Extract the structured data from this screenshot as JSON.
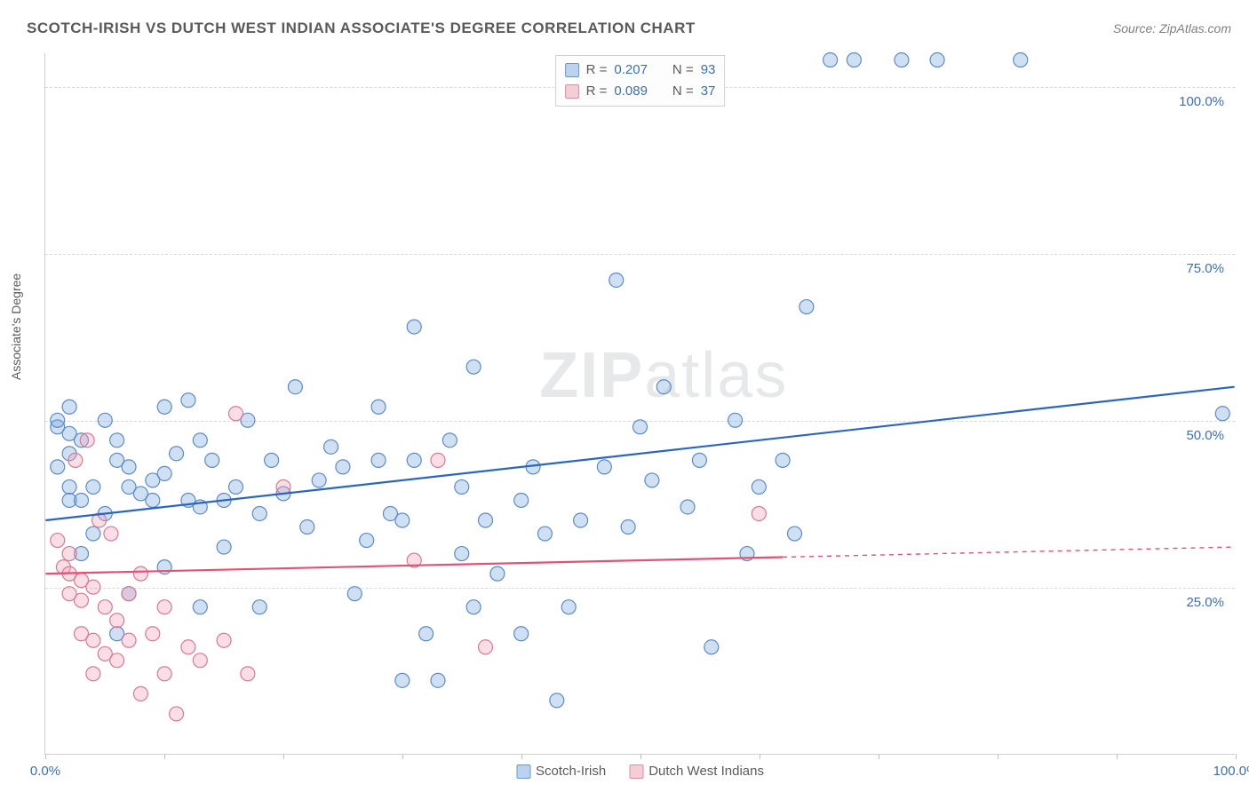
{
  "title": "SCOTCH-IRISH VS DUTCH WEST INDIAN ASSOCIATE'S DEGREE CORRELATION CHART",
  "source_label": "Source: ZipAtlas.com",
  "y_axis_label": "Associate's Degree",
  "watermark": "ZIPatlas",
  "chart": {
    "type": "scatter",
    "background_color": "#ffffff",
    "grid_color": "#d8d8d8",
    "axis_color": "#d0d0d0",
    "xlim": [
      0,
      100
    ],
    "ylim": [
      0,
      105
    ],
    "x_ticks": [
      0,
      10,
      20,
      30,
      40,
      50,
      60,
      70,
      80,
      90,
      100
    ],
    "x_tick_labels_shown": {
      "0": "0.0%",
      "100": "100.0%"
    },
    "y_grid": [
      25,
      50,
      75,
      100
    ],
    "y_tick_labels": {
      "25": "25.0%",
      "50": "50.0%",
      "75": "75.0%",
      "100": "100.0%"
    },
    "tick_label_color": "#3b6fb5",
    "tick_label_fontsize": 15,
    "marker_radius": 8,
    "marker_stroke_width": 1.2,
    "trend_line_width": 2.2,
    "series": [
      {
        "name": "Scotch-Irish",
        "fill": "rgba(120,165,220,0.35)",
        "stroke": "#5a8bc9",
        "swatch_fill": "#bcd3ef",
        "swatch_stroke": "#6a97cf",
        "R": "0.207",
        "N": "93",
        "trend": {
          "x1": 0,
          "y1": 35,
          "x2": 100,
          "y2": 55,
          "color": "#2a66bf",
          "dash_from_x": null
        },
        "points": [
          [
            1,
            49
          ],
          [
            1,
            50
          ],
          [
            1,
            43
          ],
          [
            2,
            48
          ],
          [
            2,
            45
          ],
          [
            2,
            40
          ],
          [
            2,
            38
          ],
          [
            2,
            52
          ],
          [
            3,
            30
          ],
          [
            3,
            38
          ],
          [
            3,
            47
          ],
          [
            4,
            40
          ],
          [
            4,
            33
          ],
          [
            5,
            50
          ],
          [
            5,
            36
          ],
          [
            6,
            18
          ],
          [
            6,
            44
          ],
          [
            6,
            47
          ],
          [
            7,
            24
          ],
          [
            7,
            40
          ],
          [
            7,
            43
          ],
          [
            8,
            39
          ],
          [
            9,
            38
          ],
          [
            9,
            41
          ],
          [
            10,
            28
          ],
          [
            10,
            42
          ],
          [
            10,
            52
          ],
          [
            11,
            45
          ],
          [
            12,
            38
          ],
          [
            12,
            53
          ],
          [
            13,
            22
          ],
          [
            13,
            37
          ],
          [
            13,
            47
          ],
          [
            14,
            44
          ],
          [
            15,
            38
          ],
          [
            15,
            31
          ],
          [
            16,
            40
          ],
          [
            17,
            50
          ],
          [
            18,
            22
          ],
          [
            18,
            36
          ],
          [
            19,
            44
          ],
          [
            20,
            39
          ],
          [
            21,
            55
          ],
          [
            22,
            34
          ],
          [
            23,
            41
          ],
          [
            24,
            46
          ],
          [
            25,
            43
          ],
          [
            26,
            24
          ],
          [
            27,
            32
          ],
          [
            28,
            44
          ],
          [
            28,
            52
          ],
          [
            29,
            36
          ],
          [
            30,
            11
          ],
          [
            30,
            35
          ],
          [
            31,
            64
          ],
          [
            31,
            44
          ],
          [
            32,
            18
          ],
          [
            33,
            11
          ],
          [
            34,
            47
          ],
          [
            35,
            30
          ],
          [
            35,
            40
          ],
          [
            36,
            22
          ],
          [
            36,
            58
          ],
          [
            37,
            35
          ],
          [
            38,
            27
          ],
          [
            40,
            18
          ],
          [
            40,
            38
          ],
          [
            41,
            43
          ],
          [
            42,
            33
          ],
          [
            43,
            8
          ],
          [
            44,
            22
          ],
          [
            45,
            35
          ],
          [
            47,
            43
          ],
          [
            48,
            71
          ],
          [
            49,
            34
          ],
          [
            50,
            49
          ],
          [
            51,
            41
          ],
          [
            52,
            55
          ],
          [
            54,
            37
          ],
          [
            55,
            44
          ],
          [
            56,
            16
          ],
          [
            58,
            50
          ],
          [
            59,
            30
          ],
          [
            60,
            40
          ],
          [
            62,
            44
          ],
          [
            63,
            33
          ],
          [
            64,
            67
          ],
          [
            66,
            104
          ],
          [
            68,
            104
          ],
          [
            72,
            104
          ],
          [
            75,
            104
          ],
          [
            82,
            104
          ],
          [
            99,
            51
          ]
        ]
      },
      {
        "name": "Dutch West Indians",
        "fill": "rgba(240,160,180,0.35)",
        "stroke": "#d77a94",
        "swatch_fill": "#f4cdd7",
        "swatch_stroke": "#dc8ba1",
        "R": "0.089",
        "N": "37",
        "trend": {
          "x1": 0,
          "y1": 27,
          "x2": 100,
          "y2": 31,
          "color": "#e15275",
          "dash_from_x": 62
        },
        "points": [
          [
            1,
            32
          ],
          [
            1.5,
            28
          ],
          [
            2,
            24
          ],
          [
            2,
            27
          ],
          [
            2,
            30
          ],
          [
            2.5,
            44
          ],
          [
            3,
            18
          ],
          [
            3,
            23
          ],
          [
            3,
            26
          ],
          [
            3.5,
            47
          ],
          [
            4,
            12
          ],
          [
            4,
            17
          ],
          [
            4,
            25
          ],
          [
            4.5,
            35
          ],
          [
            5,
            15
          ],
          [
            5,
            22
          ],
          [
            5.5,
            33
          ],
          [
            6,
            14
          ],
          [
            6,
            20
          ],
          [
            7,
            17
          ],
          [
            7,
            24
          ],
          [
            8,
            27
          ],
          [
            8,
            9
          ],
          [
            9,
            18
          ],
          [
            10,
            12
          ],
          [
            10,
            22
          ],
          [
            11,
            6
          ],
          [
            12,
            16
          ],
          [
            13,
            14
          ],
          [
            15,
            17
          ],
          [
            16,
            51
          ],
          [
            17,
            12
          ],
          [
            20,
            40
          ],
          [
            31,
            29
          ],
          [
            33,
            44
          ],
          [
            37,
            16
          ],
          [
            60,
            36
          ]
        ]
      }
    ]
  },
  "legend_top": {
    "rows": [
      {
        "series_idx": 0,
        "r_label": "R =",
        "n_label": "N ="
      },
      {
        "series_idx": 1,
        "r_label": "R =",
        "n_label": "N ="
      }
    ]
  },
  "legend_bottom": {
    "items": [
      {
        "series_idx": 0
      },
      {
        "series_idx": 1
      }
    ]
  }
}
